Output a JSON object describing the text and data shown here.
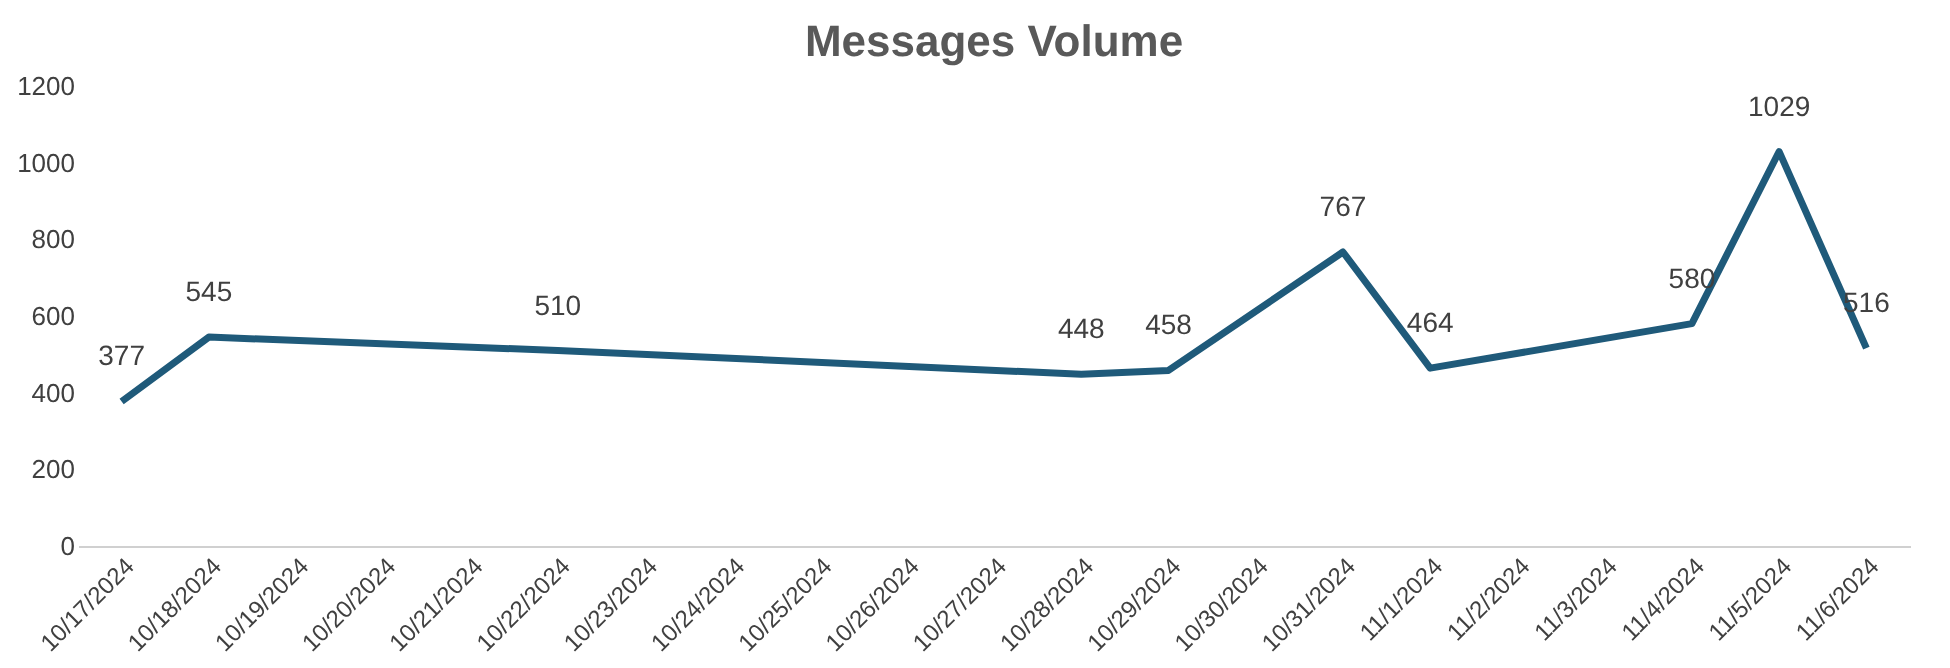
{
  "chart_data": {
    "type": "line",
    "title": "Messages Volume",
    "x": [
      "2024-10-17",
      "2024-10-18",
      "2024-10-22",
      "2024-10-28",
      "2024-10-29",
      "2024-10-31",
      "2024-11-01",
      "2024-11-04",
      "2024-11-05",
      "2024-11-06"
    ],
    "series": [
      {
        "color": "#1f5a7a",
        "values": [
          377,
          545,
          510,
          448,
          458,
          767,
          464,
          580,
          1029,
          516
        ]
      }
    ],
    "xlim": [
      "2024-10-16T12:00",
      "2024-11-06T12:00"
    ],
    "xticks": [
      {
        "value": "2024-10-17",
        "label": "10/17/2024"
      },
      {
        "value": "2024-10-18",
        "label": "10/18/2024"
      },
      {
        "value": "2024-10-19",
        "label": "10/19/2024"
      },
      {
        "value": "2024-10-20",
        "label": "10/20/2024"
      },
      {
        "value": "2024-10-21",
        "label": "10/21/2024"
      },
      {
        "value": "2024-10-22",
        "label": "10/22/2024"
      },
      {
        "value": "2024-10-23",
        "label": "10/23/2024"
      },
      {
        "value": "2024-10-24",
        "label": "10/24/2024"
      },
      {
        "value": "2024-10-25",
        "label": "10/25/2024"
      },
      {
        "value": "2024-10-26",
        "label": "10/26/2024"
      },
      {
        "value": "2024-10-27",
        "label": "10/27/2024"
      },
      {
        "value": "2024-10-28",
        "label": "10/28/2024"
      },
      {
        "value": "2024-10-29",
        "label": "10/29/2024"
      },
      {
        "value": "2024-10-30",
        "label": "10/30/2024"
      },
      {
        "value": "2024-10-31",
        "label": "10/31/2024"
      },
      {
        "value": "2024-11-01",
        "label": "11/1/2024"
      },
      {
        "value": "2024-11-02",
        "label": "11/2/2024"
      },
      {
        "value": "2024-11-03",
        "label": "11/3/2024"
      },
      {
        "value": "2024-11-04",
        "label": "11/4/2024"
      },
      {
        "value": "2024-11-05",
        "label": "11/5/2024"
      },
      {
        "value": "2024-11-06",
        "label": "11/6/2024"
      }
    ],
    "ylim": [
      0,
      1200
    ],
    "yticks": [
      0,
      200,
      400,
      600,
      800,
      1000,
      1200
    ],
    "data_labels": true,
    "grid": false,
    "marker": "none",
    "line_style": "solid"
  }
}
